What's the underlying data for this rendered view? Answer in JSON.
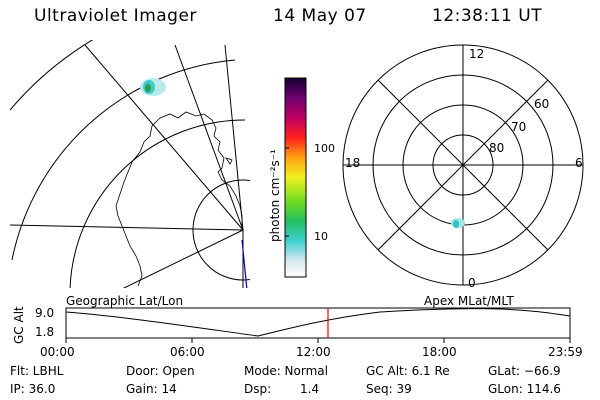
{
  "header": {
    "title": "Ultraviolet Imager",
    "date": "14 May 07",
    "time": "12:38:11 UT"
  },
  "colorbar": {
    "ticks": [
      "100",
      "10"
    ],
    "unit_label": "photon cm⁻²s⁻¹"
  },
  "polar_plot": {
    "mlt_labels": [
      "12",
      "18",
      "6",
      "0"
    ],
    "lat_labels": [
      "60",
      "70",
      "80"
    ]
  },
  "altitude_panel": {
    "ylabel": "GC Alt",
    "ymax": "9.0",
    "ymin": "1.8",
    "left_label": "Geographic Lat/Lon",
    "right_label": "Apex MLat/MLT",
    "xticks": [
      "00:00",
      "06:00",
      "12:00",
      "18:00",
      "23:59"
    ],
    "marker_time": "12:38"
  },
  "status": {
    "row1": {
      "flt": "Flt: LBHL",
      "door": "Door: Open",
      "mode": "Mode: Normal",
      "gcalt": "GC Alt: 6.1 Re",
      "glat": "GLat: −66.9"
    },
    "row2": {
      "ip": "IP: 36.0",
      "gain": "Gain: 14",
      "dsp_label": "Dsp:",
      "dsp_value": "1.4",
      "seq": "Seq: 39",
      "glon": "GLon: 114.6"
    }
  },
  "colors": {
    "marker": "#ff0000",
    "map_border": "#0000cc"
  }
}
